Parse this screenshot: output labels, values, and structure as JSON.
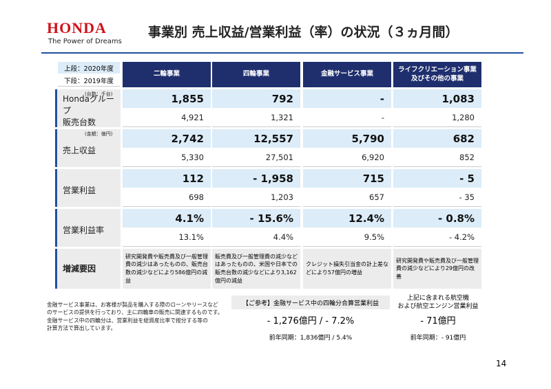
{
  "header": {
    "logo": "HONDA",
    "tagline": "The Power of Dreams",
    "title": "事業別 売上収益/営業利益（率）の状況（３ヵ月間）"
  },
  "legend": {
    "current": "上段：2020年度",
    "previous": "下段：2019年度"
  },
  "table": {
    "columns": [
      [
        "二輪事業"
      ],
      [
        "四輪事業"
      ],
      [
        "金融サービス事業"
      ],
      [
        "ライフクリエーション事業",
        "及びその他の事業"
      ]
    ],
    "rows": [
      {
        "unit": "(台数：千台)",
        "label": [
          "Hondaグループ",
          "販売台数"
        ],
        "current": [
          "1,855",
          "792",
          "-",
          "1,083"
        ],
        "previous": [
          "4,921",
          "1,321",
          "-",
          "1,280"
        ]
      },
      {
        "unit": "(金額：億円)",
        "label": [
          "売上収益"
        ],
        "current": [
          "2,742",
          "12,557",
          "5,790",
          "682"
        ],
        "previous": [
          "5,330",
          "27,501",
          "6,920",
          "852"
        ]
      },
      {
        "label": [
          "営業利益"
        ],
        "current": [
          "112",
          "- 1,958",
          "715",
          "- 5"
        ],
        "previous": [
          "698",
          "1,203",
          "657",
          "- 35"
        ]
      },
      {
        "label": [
          "営業利益率"
        ],
        "current": [
          "4.1%",
          "- 15.6%",
          "12.4%",
          "- 0.8%"
        ],
        "previous": [
          "13.1%",
          "4.4%",
          "9.5%",
          "- 4.2%"
        ]
      }
    ],
    "factors": {
      "label": "増減要因",
      "cells": [
        "研究開発費や販売費及び一般管理費の減少はあったものの、販売台数の減少などにより586億円の減益",
        "販売費及び一般管理費の減少などはあったものの、米国や日本での販売台数の減少などにより3,162億円の減益",
        "クレジット損失引当金の計上差などにより57億円の増益",
        "研究開発費や販売費及び一般管理費の減少などにより29億円の改善"
      ]
    }
  },
  "footnote": [
    "金融サービス事業は、お客様が製品を購入する際のローンやリースなど",
    "のサービスの提供を行っており、主に四輪車の販売に関連するものです。",
    "金融サービス中の四輪分は、営業利益を総資産比率で按分する等の",
    "計算方法で算出しています。"
  ],
  "reference": {
    "title": "【ご参考】金融サービス中の四輪分合算営業利益",
    "value": "- 1,276億円 / - 7.2%",
    "previous": "前年同期：1,836億円 / 5.4%"
  },
  "aircraft": {
    "title": [
      "上記に含まれる航空機",
      "および航空エンジン営業利益"
    ],
    "value": "- 71億円",
    "previous": "前年同期：- 91億円"
  },
  "page_number": "14"
}
